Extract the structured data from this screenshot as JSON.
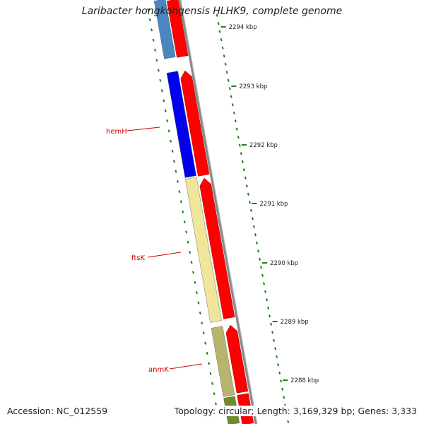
{
  "title": "Laribacter hongkongensis HLHK9, complete genome",
  "accession": "Accession: NC_012559",
  "summary": "Topology: circular; Length: 3,169,329 bp; Genes: 3,333",
  "colors": {
    "forward_cds": "#ff0000",
    "gene_label": "#cc0000",
    "tick": "#1e7f1e",
    "backbone": "#888888"
  },
  "ticks": [
    {
      "label": "2294 kbp"
    },
    {
      "label": "2293 kbp"
    },
    {
      "label": "2292 kbp"
    },
    {
      "label": "2291 kbp"
    },
    {
      "label": "2290 kbp"
    },
    {
      "label": "2289 kbp"
    },
    {
      "label": "2288 kbp"
    }
  ],
  "genes": [
    {
      "label": "",
      "strand": "reverse",
      "color": "#4a86c0"
    },
    {
      "label": "hemH",
      "strand": "reverse",
      "color": "#0000ee"
    },
    {
      "label": "ftsK",
      "strand": "reverse",
      "color": "#f0e69a"
    },
    {
      "label": "anmK",
      "strand": "reverse",
      "color": "#b8b46e"
    },
    {
      "label": "",
      "strand": "reverse",
      "color": "#6e8c2a"
    },
    {
      "label": "",
      "strand": "forward",
      "color": "#ff0000"
    },
    {
      "label": "",
      "strand": "forward",
      "color": "#ff0000"
    },
    {
      "label": "",
      "strand": "forward",
      "color": "#ff0000"
    },
    {
      "label": "",
      "strand": "forward",
      "color": "#ff0000"
    },
    {
      "label": "",
      "strand": "forward",
      "color": "#ff0000"
    }
  ]
}
